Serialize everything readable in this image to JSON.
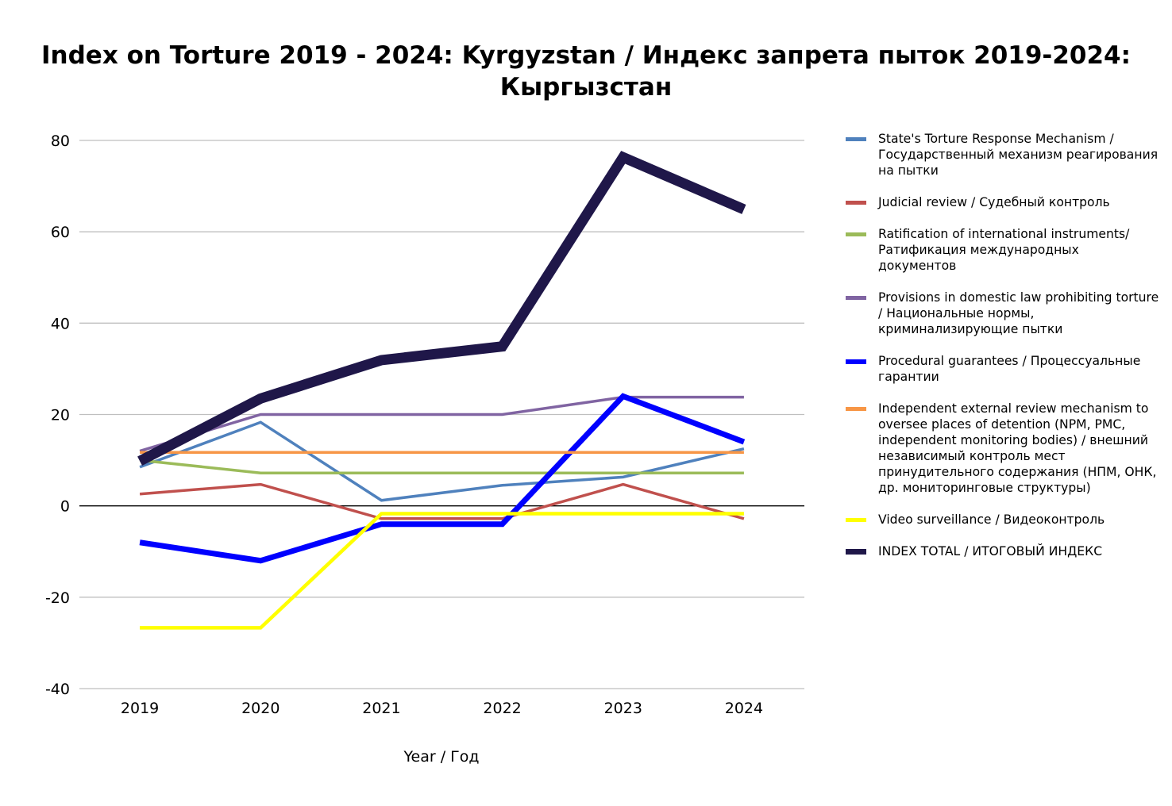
{
  "chart_data": {
    "type": "line",
    "title": "Index on Torture 2019 - 2024: Kyrgyzstan / Индекс запрета пыток 2019-2024: Кыргызстан",
    "xlabel": "Year / Год",
    "ylabel": "",
    "categories": [
      "2019",
      "2020",
      "2021",
      "2022",
      "2023",
      "2024"
    ],
    "ylim": [
      -40,
      80
    ],
    "yticks": [
      80,
      60,
      40,
      20,
      0,
      -20,
      -40
    ],
    "grid": true,
    "legend_position": "right",
    "series": [
      {
        "name": "State's Torture Response Mechanism / Государственный механизм реагирования на пытки",
        "color": "#4f81bd",
        "values": [
          8.5,
          18.3,
          1.2,
          4.5,
          6.3,
          12.5
        ]
      },
      {
        "name": "Judicial review / Судебный контроль",
        "color": "#c0504d",
        "values": [
          2.6,
          4.7,
          -2.8,
          -2.8,
          4.7,
          -2.8
        ]
      },
      {
        "name": "Ratification of international instruments/ Ратификация международных документов",
        "color": "#9bbb59",
        "values": [
          10.0,
          7.2,
          7.2,
          7.2,
          7.2,
          7.2
        ]
      },
      {
        "name": "Provisions in domestic law prohibiting torture / Национальные нормы, криминализирующие пытки",
        "color": "#8064a2",
        "values": [
          12.0,
          20.0,
          20.0,
          20.0,
          23.8,
          23.8
        ]
      },
      {
        "name": "Procedural guarantees / Процессуальные гарантии",
        "color": "#0000ff",
        "values": [
          -8.0,
          -12.0,
          -4.0,
          -4.0,
          24.0,
          14.0
        ]
      },
      {
        "name": "Independent external review mechanism to oversee places of detention (NPM, PMC, independent monitoring bodies) / внешний независимый контроль мест принудительного содержания (НПМ, ОНК, др. мониторинговые структуры)",
        "color": "#f79646",
        "values": [
          11.7,
          11.7,
          11.7,
          11.7,
          11.7,
          11.7
        ]
      },
      {
        "name": "Video surveillance / Видеоконтроль",
        "color": "#ffff00",
        "values": [
          -26.7,
          -26.7,
          -1.7,
          -1.7,
          -1.7,
          -1.7
        ]
      },
      {
        "name": "INDEX TOTAL /  ИТОГОВЫЙ ИНДЕКС",
        "color": "#1f1749",
        "values": [
          9.8,
          23.5,
          31.9,
          34.9,
          76.3,
          64.9
        ]
      }
    ]
  }
}
